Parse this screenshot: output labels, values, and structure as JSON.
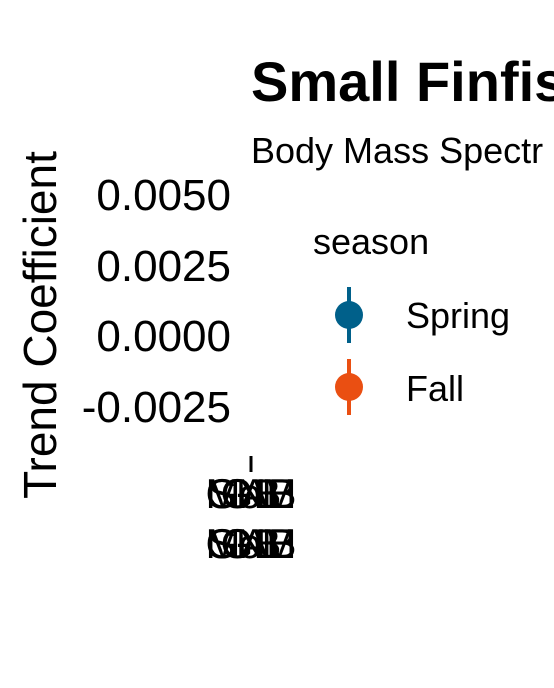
{
  "chart_data": {
    "type": "scatter",
    "title": "Small Finfis",
    "subtitle": "Body Mass Spectr",
    "xlabel": "",
    "ylabel": "Trend Coefficient",
    "y_ticks": [
      "0.0050",
      "0.0025",
      "0.0000",
      "-0.0025"
    ],
    "y_tick_values": [
      0.005,
      0.0025,
      0.0,
      -0.0025
    ],
    "ylim": [
      -0.0035,
      0.006
    ],
    "categories": [
      {
        "line1": "GB",
        "line2": "MAB"
      },
      {
        "line1": "GoM",
        "line2": "GB"
      },
      {
        "line1": "MAB",
        "line2": "SNE"
      },
      {
        "line1": "SNE",
        "line2": "GoM"
      }
    ],
    "legend": {
      "title": "season",
      "placement": "right",
      "entries": [
        {
          "label": "Spring",
          "color": "#00608a"
        },
        {
          "label": "Fall",
          "color": "#ea4f12"
        }
      ]
    },
    "series": [
      {
        "name": "Spring",
        "color": "#00608a",
        "values": []
      },
      {
        "name": "Fall",
        "color": "#ea4f12",
        "values": []
      }
    ]
  }
}
